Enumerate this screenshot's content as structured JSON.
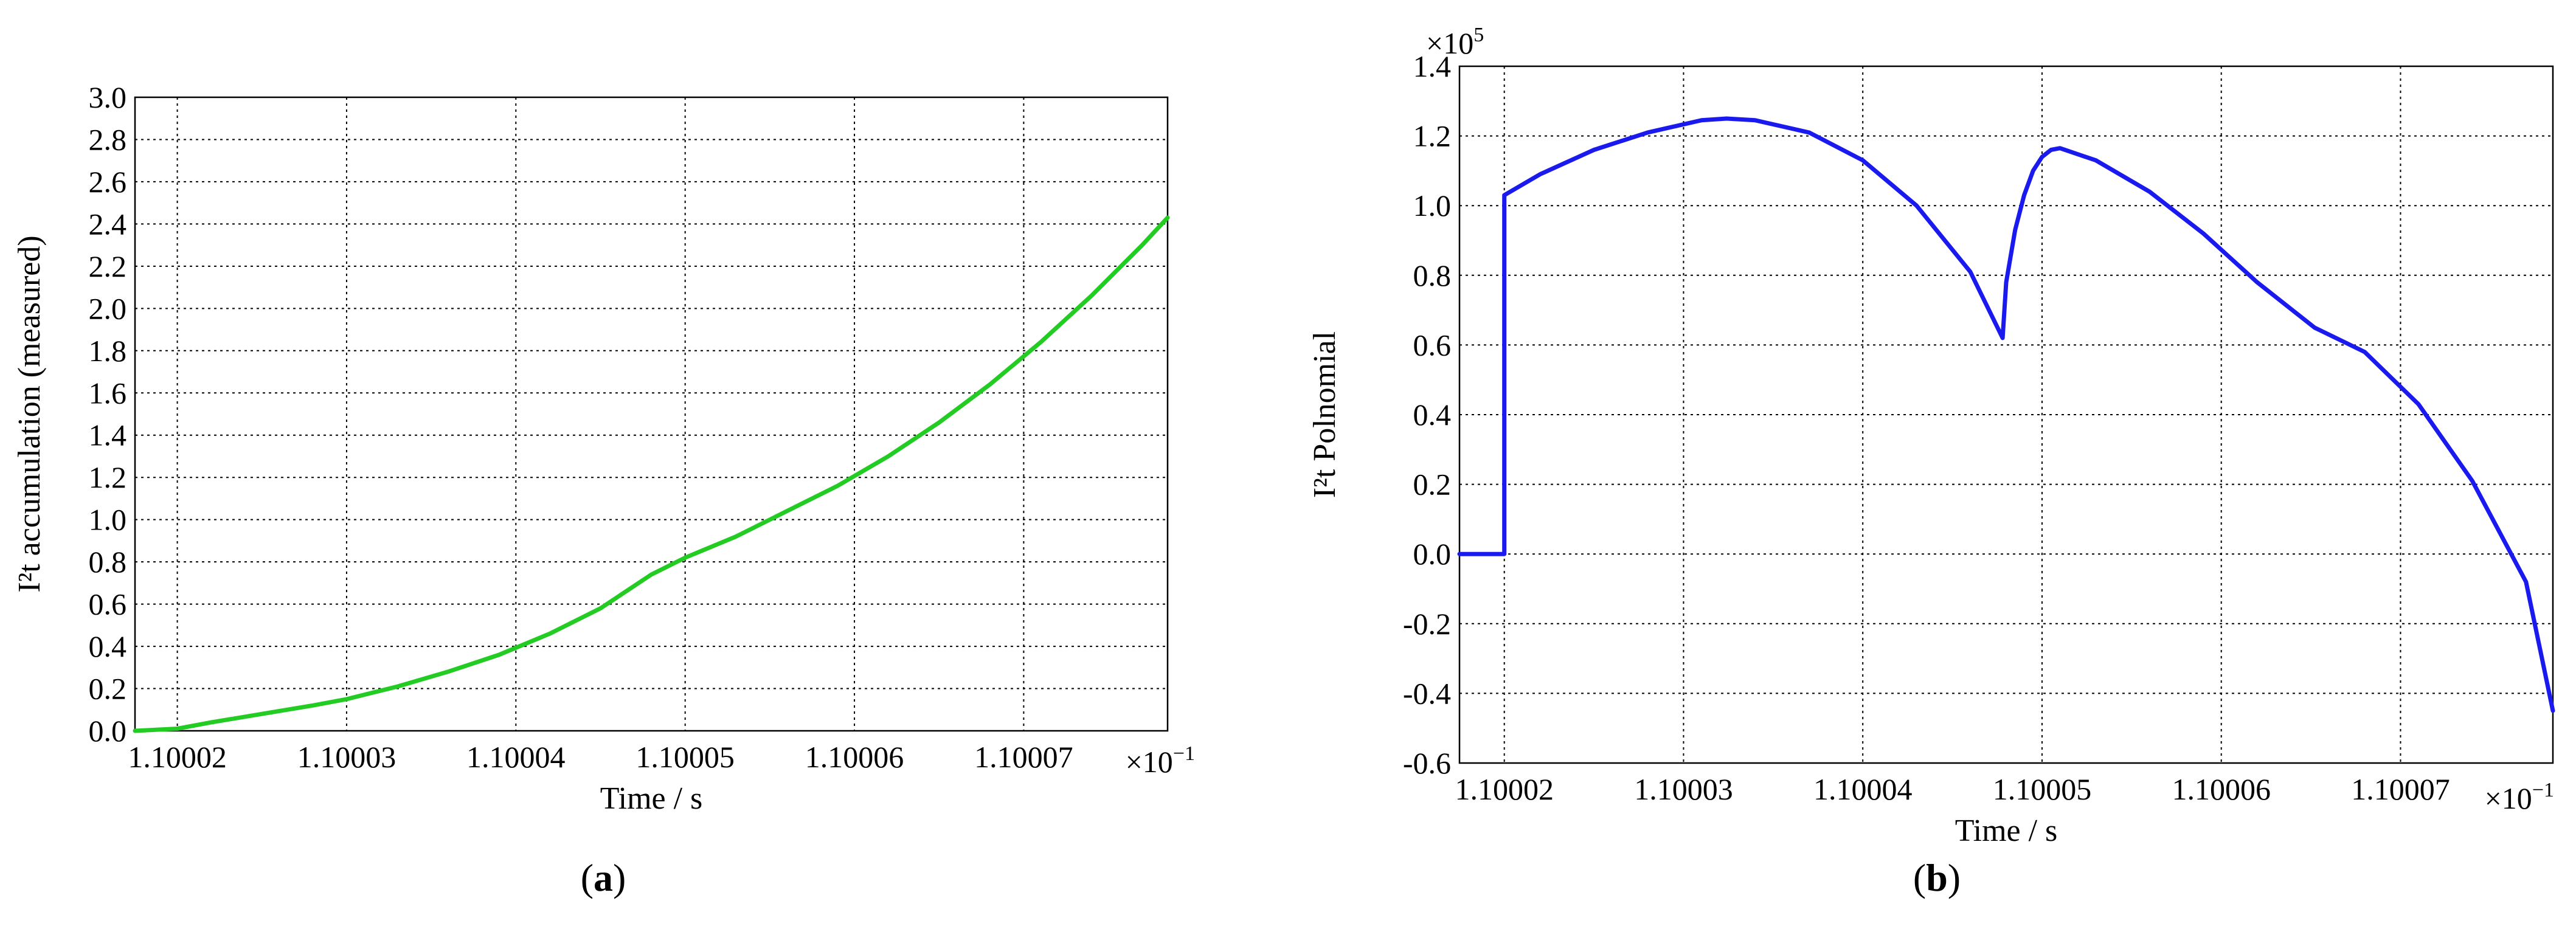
{
  "chart_data": [
    {
      "type": "line",
      "panel_label": "a",
      "xlabel": "Time / s",
      "ylabel": "I²t accumulation (measured)",
      "x_multiplier": "×10",
      "x_multiplier_exp": "−1",
      "xlim": [
        1.1000175,
        1.1000785
      ],
      "ylim": [
        0.0,
        3.0
      ],
      "xticks": [
        1.10002,
        1.10003,
        1.10004,
        1.10005,
        1.10006,
        1.10007
      ],
      "xtick_labels": [
        "1.10002",
        "1.10003",
        "1.10004",
        "1.10005",
        "1.10006",
        "1.10007"
      ],
      "yticks": [
        0.0,
        0.2,
        0.4,
        0.6,
        0.8,
        1.0,
        1.2,
        1.4,
        1.6,
        1.8,
        2.0,
        2.2,
        2.4,
        2.6,
        2.8,
        3.0
      ],
      "ytick_labels": [
        "0.0",
        "0.2",
        "0.4",
        "0.6",
        "0.8",
        "1.0",
        "1.2",
        "1.4",
        "1.6",
        "1.8",
        "2.0",
        "2.2",
        "2.4",
        "2.6",
        "2.8",
        "3.0"
      ],
      "grid": true,
      "series": [
        {
          "color": "#22cc22",
          "x": [
            1.1000175,
            1.10002,
            1.100022,
            1.100025,
            1.100028,
            1.10003,
            1.100033,
            1.100036,
            1.100039,
            1.100042,
            1.100045,
            1.100048,
            1.10005,
            1.100053,
            1.100056,
            1.100059,
            1.100062,
            1.100065,
            1.100068,
            1.100071,
            1.100074,
            1.100077,
            1.1000785
          ],
          "y": [
            0.0,
            0.01,
            0.04,
            0.08,
            0.12,
            0.15,
            0.21,
            0.28,
            0.36,
            0.46,
            0.58,
            0.74,
            0.82,
            0.92,
            1.04,
            1.16,
            1.3,
            1.46,
            1.64,
            1.84,
            2.06,
            2.3,
            2.43
          ]
        }
      ]
    },
    {
      "type": "line",
      "panel_label": "b",
      "xlabel": "Time / s",
      "ylabel": "I²t Polnomial",
      "x_multiplier": "×10",
      "x_multiplier_exp": "−1",
      "y_multiplier": "×10",
      "y_multiplier_exp": "5",
      "xlim": [
        1.1000175,
        1.1000785
      ],
      "ylim": [
        -0.6,
        1.4
      ],
      "xticks": [
        1.10002,
        1.10003,
        1.10004,
        1.10005,
        1.10006,
        1.10007
      ],
      "xtick_labels": [
        "1.10002",
        "1.10003",
        "1.10004",
        "1.10005",
        "1.10006",
        "1.10007"
      ],
      "yticks": [
        -0.6,
        -0.4,
        -0.2,
        0.0,
        0.2,
        0.4,
        0.6,
        0.8,
        1.0,
        1.2,
        1.4
      ],
      "ytick_labels": [
        "-0.6",
        "-0.4",
        "-0.2",
        "0.0",
        "0.2",
        "0.4",
        "0.6",
        "0.8",
        "1.0",
        "1.2",
        "1.4"
      ],
      "grid": true,
      "series": [
        {
          "color": "#1a1aee",
          "x": [
            1.1000175,
            1.10002,
            1.10002,
            1.100022,
            1.100025,
            1.100028,
            1.100031,
            1.1000324,
            1.100034,
            1.100037,
            1.10004,
            1.100043,
            1.100046,
            1.1000478,
            1.100048,
            1.1000485,
            1.100049,
            1.1000495,
            1.10005,
            1.1000505,
            1.100051,
            1.100053,
            1.100056,
            1.100059,
            1.100062,
            1.1000652,
            1.100068,
            1.100071,
            1.100074,
            1.100077,
            1.1000785
          ],
          "y": [
            0.0,
            0.0,
            1.03,
            1.09,
            1.16,
            1.21,
            1.245,
            1.25,
            1.245,
            1.21,
            1.13,
            1.0,
            0.81,
            0.62,
            0.78,
            0.93,
            1.03,
            1.1,
            1.14,
            1.16,
            1.165,
            1.13,
            1.04,
            0.92,
            0.78,
            0.65,
            0.58,
            0.43,
            0.21,
            -0.08,
            -0.45
          ]
        }
      ]
    }
  ]
}
